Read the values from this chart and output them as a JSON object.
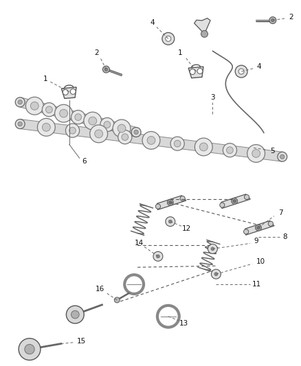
{
  "bg_color": "#ffffff",
  "lc": "#444444",
  "figsize": [
    4.38,
    5.33
  ],
  "dpi": 100,
  "cam_color": "#666666",
  "lobe_fc": "#dddddd",
  "lobe_ec": "#555555",
  "shaft_light": "#cccccc",
  "part_fc": "#cccccc",
  "part_ec": "#555555",
  "label_fs": 7.5,
  "line_color": "#666666"
}
